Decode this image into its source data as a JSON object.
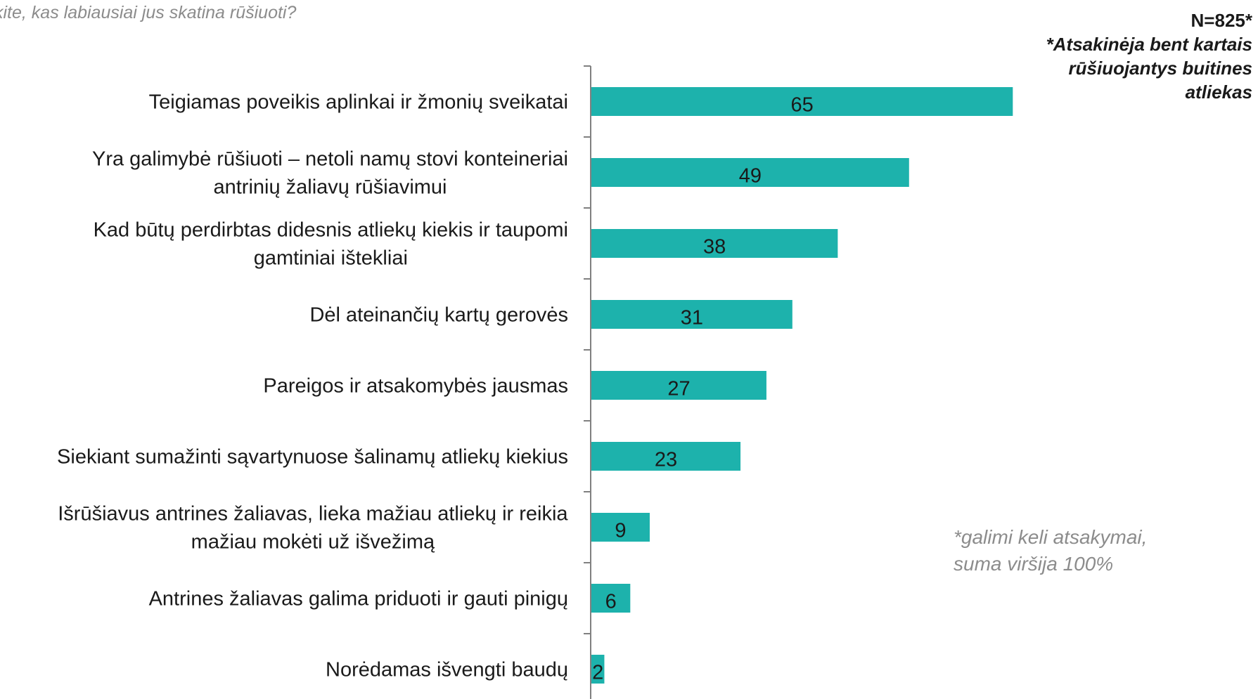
{
  "question": "kite, kas labiausiai jus skatina rūšiuoti?",
  "sample": {
    "n": "N=825*",
    "note_lines": [
      "*Atsakinėja bent kartais",
      "rūšiuojantys buitines",
      "atliekas"
    ]
  },
  "multi_answer_note": [
    "*galimi keli atsakymai,",
    "suma viršija 100%"
  ],
  "colors": {
    "bar": "#1db2ac",
    "axis": "#808080"
  },
  "chart_data": {
    "type": "bar",
    "orientation": "horizontal",
    "categories": [
      [
        "Teigiamas  poveikis aplinkai  ir žmonių sveikatai"
      ],
      [
        "Yra galimybė  rūšiuoti – netoli namų  stovi konteineriai",
        "antrinių  žaliavų  rūšiavimui"
      ],
      [
        "Kad būtų perdirbtas didesnis atliekų kiekis ir taupomi",
        "gamtiniai ištekliai"
      ],
      [
        "Dėl ateinančių kartų  gerovės"
      ],
      [
        "Pareigos ir atsakomybės  jausmas"
      ],
      [
        "Siekiant sumažinti sąvartynuose šalinamų  atliekų  kiekius"
      ],
      [
        "Išrūšiavus antrines žaliavas, lieka mažiau atliekų  ir reikia",
        "mažiau mokėti  už išvežimą"
      ],
      [
        "Antrines žaliavas galima  priduoti ir gauti pinigų"
      ],
      [
        "Norėdamas išvengti baudų"
      ]
    ],
    "values": [
      65,
      49,
      38,
      31,
      27,
      23,
      9,
      6,
      2
    ],
    "xlim": [
      0,
      100
    ],
    "grid": false,
    "legend": "none"
  }
}
